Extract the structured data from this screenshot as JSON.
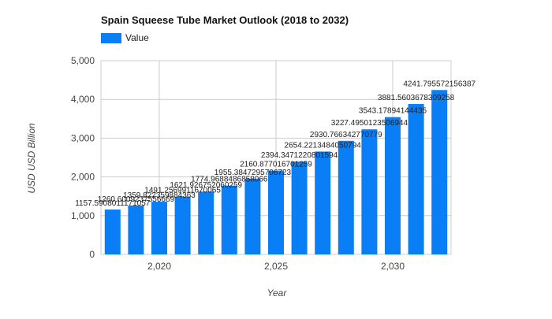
{
  "colors": {
    "bar": "#0a7ef5",
    "grid": "#cccccc",
    "axis_text": "#444444",
    "title": "#111111"
  },
  "chart_data": {
    "type": "bar",
    "title": "Spain Squeese Tube Market Outlook (2018 to 2032)",
    "xlabel": "Year",
    "ylabel": "USD USD Billion",
    "ylim": [
      0,
      5000
    ],
    "y_ticks": [
      0,
      1000,
      2000,
      3000,
      4000,
      5000
    ],
    "y_tick_labels": [
      "0",
      "1,000",
      "2,000",
      "3,000",
      "4,000",
      "5,000"
    ],
    "x_ticks": [
      2020,
      2025,
      2030
    ],
    "x_tick_labels": [
      "2,020",
      "2,025",
      "2,030"
    ],
    "grid": true,
    "legend_position": "top-left",
    "series": [
      {
        "name": "Value",
        "x": [
          2018,
          2019,
          2020,
          2021,
          2022,
          2023,
          2024,
          2025,
          2026,
          2027,
          2028,
          2029,
          2030,
          2031,
          2032
        ],
        "values": [
          1157.5908011171057,
          1260.6009237556668,
          1359.822359884363,
          1491.2569911670064,
          1621.926752060259,
          1774.9688486858065,
          1955.3847295706723,
          2160.877016701259,
          2394.3471220801594,
          2654.2213484050794,
          2930.766342770779,
          3227.495012350694,
          3543.17894144435,
          3881.5603678309258,
          4241.795572156387
        ],
        "labels": [
          "1157.5908011171057",
          "1260.6009237556669",
          "1359.822359884363",
          "1491.2569911670065",
          "1621.926752060259",
          "1774.9688486858066",
          "1955.3847295706723",
          "2160.877016701259",
          "2394.3471220801594",
          "2654.2213484050794",
          "2930.766342770779",
          "3227.4950123506944",
          "3543.17894144435",
          "3881.5603678309258",
          "4241.795572156387"
        ]
      }
    ]
  }
}
